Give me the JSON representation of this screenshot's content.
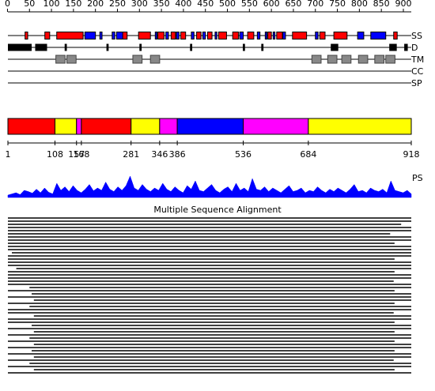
{
  "ruler": {
    "range": [
      1,
      918
    ],
    "ticks": [
      0,
      50,
      100,
      150,
      200,
      250,
      300,
      350,
      400,
      450,
      500,
      550,
      600,
      650,
      700,
      750,
      800,
      850,
      900
    ]
  },
  "tracks": {
    "labels": [
      "SS",
      "D",
      "TM",
      "CC",
      "SP"
    ],
    "ss": {
      "helix_color": "#ff0000",
      "strand_color": "#0000ff",
      "helices": [
        [
          40,
          46
        ],
        [
          85,
          96
        ],
        [
          112,
          172
        ],
        [
          178,
          186
        ],
        [
          260,
          272
        ],
        [
          298,
          325
        ],
        [
          342,
          356
        ],
        [
          372,
          382
        ],
        [
          394,
          405
        ],
        [
          430,
          440
        ],
        [
          455,
          465
        ],
        [
          480,
          498
        ],
        [
          512,
          525
        ],
        [
          546,
          560
        ],
        [
          592,
          600
        ],
        [
          612,
          625
        ],
        [
          648,
          680
        ],
        [
          710,
          722
        ],
        [
          742,
          772
        ],
        [
          842,
          850
        ],
        [
          878,
          886
        ]
      ],
      "strands": [
        [
          176,
          200
        ],
        [
          210,
          215
        ],
        [
          238,
          244
        ],
        [
          248,
          262
        ],
        [
          336,
          340
        ],
        [
          360,
          366
        ],
        [
          384,
          390
        ],
        [
          418,
          424
        ],
        [
          444,
          450
        ],
        [
          472,
          476
        ],
        [
          528,
          536
        ],
        [
          568,
          574
        ],
        [
          586,
          590
        ],
        [
          604,
          608
        ],
        [
          626,
          632
        ],
        [
          700,
          706
        ],
        [
          796,
          810
        ],
        [
          826,
          860
        ]
      ]
    },
    "disorder": [
      [
        1,
        55
      ],
      [
        63,
        90
      ],
      [
        130,
        135
      ],
      [
        225,
        230
      ],
      [
        300,
        305
      ],
      [
        415,
        420
      ],
      [
        535,
        540
      ],
      [
        577,
        582
      ],
      [
        735,
        752
      ],
      [
        868,
        885
      ],
      [
        902,
        910
      ]
    ],
    "tm": [
      [
        110,
        131
      ],
      [
        135,
        156
      ],
      [
        285,
        306
      ],
      [
        325,
        346
      ],
      [
        692,
        713
      ],
      [
        728,
        749
      ],
      [
        760,
        781
      ],
      [
        798,
        819
      ],
      [
        835,
        856
      ],
      [
        860,
        881
      ]
    ]
  },
  "domains": {
    "segments": [
      {
        "start": 1,
        "end": 108,
        "color": "#ff0000"
      },
      {
        "start": 108,
        "end": 157,
        "color": "#ffff00"
      },
      {
        "start": 157,
        "end": 168,
        "color": "#ff00ff"
      },
      {
        "start": 168,
        "end": 281,
        "color": "#ff0000"
      },
      {
        "start": 281,
        "end": 346,
        "color": "#ffff00"
      },
      {
        "start": 346,
        "end": 386,
        "color": "#ff00ff"
      },
      {
        "start": 386,
        "end": 536,
        "color": "#0000ff"
      },
      {
        "start": 536,
        "end": 684,
        "color": "#ff00ff"
      },
      {
        "start": 684,
        "end": 918,
        "color": "#ffff00"
      }
    ],
    "ticks": [
      1,
      108,
      157,
      168,
      281,
      346,
      386,
      536,
      684,
      918
    ]
  },
  "ps": {
    "label": "PS",
    "color": "#0000ff",
    "values": [
      0.1,
      0.15,
      0.2,
      0.12,
      0.3,
      0.25,
      0.18,
      0.35,
      0.2,
      0.4,
      0.22,
      0.15,
      0.6,
      0.3,
      0.45,
      0.25,
      0.5,
      0.3,
      0.2,
      0.35,
      0.55,
      0.28,
      0.4,
      0.3,
      0.65,
      0.35,
      0.25,
      0.45,
      0.3,
      0.5,
      0.9,
      0.4,
      0.3,
      0.55,
      0.35,
      0.25,
      0.4,
      0.3,
      0.6,
      0.35,
      0.25,
      0.45,
      0.3,
      0.2,
      0.5,
      0.35,
      0.7,
      0.3,
      0.25,
      0.4,
      0.55,
      0.3,
      0.2,
      0.35,
      0.45,
      0.25,
      0.6,
      0.3,
      0.4,
      0.25,
      0.8,
      0.35,
      0.3,
      0.45,
      0.25,
      0.4,
      0.3,
      0.2,
      0.35,
      0.5,
      0.25,
      0.3,
      0.4,
      0.2,
      0.3,
      0.25,
      0.45,
      0.3,
      0.2,
      0.35,
      0.25,
      0.4,
      0.3,
      0.2,
      0.35,
      0.55,
      0.25,
      0.3,
      0.2,
      0.4,
      0.3,
      0.25,
      0.35,
      0.2,
      0.7,
      0.3,
      0.25,
      0.2,
      0.3,
      0.15
    ]
  },
  "msa": {
    "title": "Multiple Sequence Alignment",
    "rows": [
      [
        1,
        918
      ],
      [
        1,
        918
      ],
      [
        1,
        895
      ],
      [
        1,
        918
      ],
      [
        1,
        918
      ],
      [
        1,
        870
      ],
      [
        1,
        918
      ],
      [
        1,
        918
      ],
      [
        1,
        880
      ],
      [
        1,
        918
      ],
      [
        1,
        918
      ],
      [
        10,
        918
      ],
      [
        1,
        918
      ],
      [
        1,
        880
      ],
      [
        1,
        918
      ],
      [
        1,
        918
      ],
      [
        20,
        918
      ],
      [
        1,
        880
      ],
      [
        1,
        918
      ],
      [
        1,
        918
      ],
      [
        1,
        878
      ],
      [
        1,
        918
      ],
      [
        50,
        918
      ],
      [
        1,
        880
      ],
      [
        55,
        918
      ],
      [
        1,
        918
      ],
      [
        60,
        918
      ],
      [
        1,
        880
      ],
      [
        50,
        918
      ],
      [
        1,
        918
      ],
      [
        1,
        878
      ],
      [
        60,
        918
      ],
      [
        1,
        918
      ],
      [
        1,
        880
      ],
      [
        55,
        918
      ],
      [
        1,
        918
      ],
      [
        60,
        880
      ],
      [
        1,
        918
      ],
      [
        50,
        918
      ],
      [
        1,
        880
      ],
      [
        60,
        918
      ],
      [
        1,
        918
      ],
      [
        55,
        880
      ],
      [
        1,
        918
      ],
      [
        60,
        918
      ],
      [
        1,
        878
      ],
      [
        50,
        918
      ],
      [
        1,
        918
      ],
      [
        60,
        880
      ],
      [
        1,
        918
      ]
    ]
  }
}
